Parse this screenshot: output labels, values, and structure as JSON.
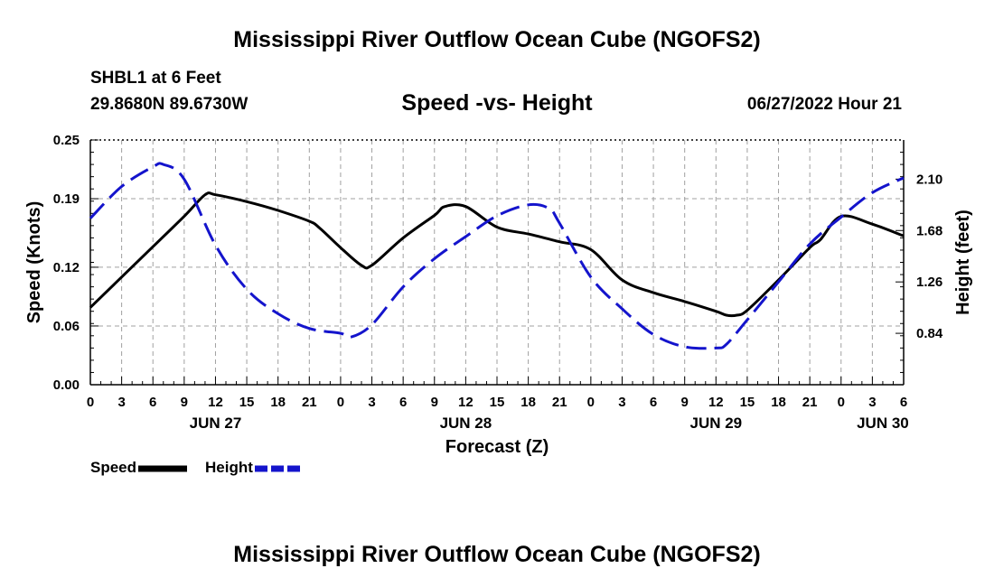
{
  "header": {
    "title": "Mississippi River Outflow Ocean Cube (NGOFS2)",
    "station": "SHBL1 at 6 Feet",
    "latlon": "29.8680N  89.6730W",
    "subtitle": "Speed -vs- Height",
    "datetime": "06/27/2022 Hour 21"
  },
  "footer": {
    "title": "Mississippi River Outflow Ocean Cube (NGOFS2)"
  },
  "legend": {
    "speed_label": "Speed",
    "height_label": "Height"
  },
  "colors": {
    "speed": "#000000",
    "height": "#1414cc",
    "grid": "#a0a0a0"
  },
  "chart_data": {
    "type": "line",
    "title": "Speed -vs- Height",
    "xlabel": "Forecast (Z)",
    "ylabel": "Speed (Knots)",
    "y2label": "Height (feet)",
    "x_range_hours": [
      0,
      78
    ],
    "x_ticks": [
      {
        "h": 0,
        "label": "0"
      },
      {
        "h": 3,
        "label": "3"
      },
      {
        "h": 6,
        "label": "6"
      },
      {
        "h": 9,
        "label": "9"
      },
      {
        "h": 12,
        "label": "12"
      },
      {
        "h": 15,
        "label": "15"
      },
      {
        "h": 18,
        "label": "18"
      },
      {
        "h": 21,
        "label": "21"
      },
      {
        "h": 24,
        "label": "0"
      },
      {
        "h": 27,
        "label": "3"
      },
      {
        "h": 30,
        "label": "6"
      },
      {
        "h": 33,
        "label": "9"
      },
      {
        "h": 36,
        "label": "12"
      },
      {
        "h": 39,
        "label": "15"
      },
      {
        "h": 42,
        "label": "18"
      },
      {
        "h": 45,
        "label": "21"
      },
      {
        "h": 48,
        "label": "0"
      },
      {
        "h": 51,
        "label": "3"
      },
      {
        "h": 54,
        "label": "6"
      },
      {
        "h": 57,
        "label": "9"
      },
      {
        "h": 60,
        "label": "12"
      },
      {
        "h": 63,
        "label": "15"
      },
      {
        "h": 66,
        "label": "18"
      },
      {
        "h": 69,
        "label": "21"
      },
      {
        "h": 72,
        "label": "0"
      },
      {
        "h": 75,
        "label": "3"
      },
      {
        "h": 78,
        "label": "6"
      }
    ],
    "day_labels": [
      {
        "h": 12,
        "label": "JUN 27"
      },
      {
        "h": 36,
        "label": "JUN 28"
      },
      {
        "h": 60,
        "label": "JUN 29"
      },
      {
        "h": 76,
        "label": "JUN 30"
      }
    ],
    "y_left": {
      "range": [
        0,
        0.25
      ],
      "ticks": [
        0.0,
        0.06,
        0.12,
        0.19,
        0.25
      ],
      "labels": [
        "0.00",
        "0.06",
        "0.12",
        "0.19",
        "0.25"
      ]
    },
    "y_right": {
      "range": [
        0.42,
        2.42
      ],
      "ticks": [
        0.84,
        1.26,
        1.68,
        2.1
      ],
      "labels": [
        "0.84",
        "1.26",
        "1.68",
        "2.10"
      ]
    },
    "series": [
      {
        "name": "Speed",
        "axis": "left",
        "style": "solid",
        "x": [
          0,
          3,
          6,
          9,
          11,
          12,
          15,
          18,
          21,
          22,
          24,
          26,
          27,
          30,
          33,
          34,
          36,
          39,
          42,
          45,
          48,
          51,
          54,
          57,
          60,
          61,
          62,
          63,
          66,
          69,
          70,
          72,
          75,
          78
        ],
        "y": [
          0.079,
          0.11,
          0.141,
          0.172,
          0.194,
          0.194,
          0.187,
          0.178,
          0.167,
          0.16,
          0.14,
          0.122,
          0.122,
          0.15,
          0.173,
          0.182,
          0.182,
          0.161,
          0.154,
          0.146,
          0.138,
          0.107,
          0.094,
          0.085,
          0.075,
          0.071,
          0.071,
          0.076,
          0.107,
          0.14,
          0.148,
          0.172,
          0.164,
          0.152
        ]
      },
      {
        "name": "Height",
        "axis": "right",
        "style": "dashed",
        "x": [
          0,
          3,
          6,
          7,
          9,
          12,
          15,
          18,
          21,
          24,
          25,
          27,
          30,
          33,
          36,
          39,
          42,
          44,
          45,
          48,
          51,
          54,
          57,
          60,
          61,
          63,
          66,
          69,
          72,
          75,
          78
        ],
        "y": [
          1.78,
          2.04,
          2.2,
          2.22,
          2.1,
          1.56,
          1.2,
          1.0,
          0.88,
          0.84,
          0.81,
          0.91,
          1.22,
          1.45,
          1.63,
          1.8,
          1.89,
          1.86,
          1.74,
          1.3,
          1.04,
          0.83,
          0.73,
          0.72,
          0.75,
          0.95,
          1.26,
          1.57,
          1.79,
          1.99,
          2.11
        ]
      }
    ]
  }
}
